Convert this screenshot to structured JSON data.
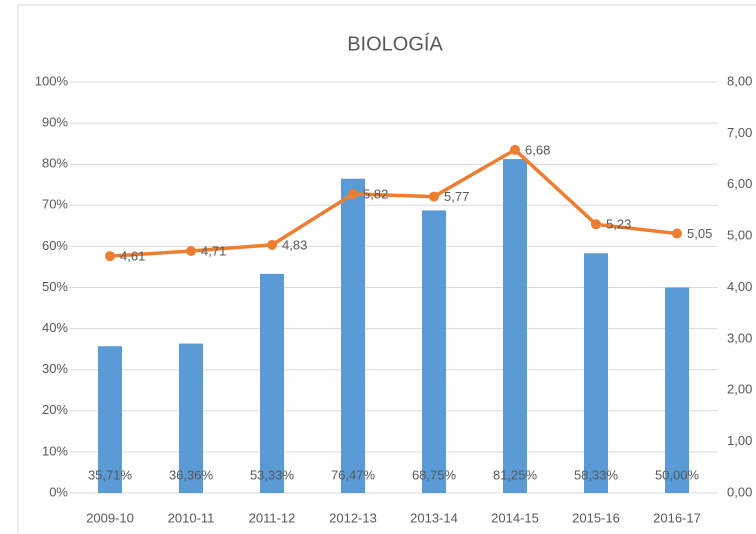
{
  "chart_data": {
    "type": "bar_line",
    "title": "BIOLOGÍA",
    "categories": [
      "2009-10",
      "2010-11",
      "2011-12",
      "2012-13",
      "2013-14",
      "2014-15",
      "2015-16",
      "2016-17"
    ],
    "series": [
      {
        "type": "bar",
        "color": "#5b9bd5",
        "values": [
          35.71,
          36.36,
          53.33,
          76.47,
          68.75,
          81.25,
          58.33,
          50.0
        ],
        "value_labels": [
          "35,71%",
          "36,36%",
          "53,33%",
          "76,47%",
          "68,75%",
          "81,25%",
          "58,33%",
          "50,00%"
        ]
      },
      {
        "type": "line",
        "axis": "y2",
        "color": "#ed7d31",
        "values": [
          4.61,
          4.71,
          4.83,
          5.82,
          5.77,
          6.68,
          5.23,
          5.05
        ],
        "value_labels": [
          "4,61",
          "4,71",
          "4,83",
          "5,82",
          "5,77",
          "6,68",
          "5,23",
          "5,05"
        ]
      }
    ],
    "ylim": [
      0,
      100
    ],
    "yticks": [
      {
        "value": 0,
        "label": "0%"
      },
      {
        "value": 10,
        "label": "10%"
      },
      {
        "value": 20,
        "label": "20%"
      },
      {
        "value": 30,
        "label": "30%"
      },
      {
        "value": 40,
        "label": "40%"
      },
      {
        "value": 50,
        "label": "50%"
      },
      {
        "value": 60,
        "label": "60%"
      },
      {
        "value": 70,
        "label": "70%"
      },
      {
        "value": 80,
        "label": "80%"
      },
      {
        "value": 90,
        "label": "90%"
      },
      {
        "value": 100,
        "label": "100%"
      }
    ],
    "y2lim": [
      0,
      8
    ],
    "y2ticks": [
      {
        "value": 0,
        "label": "0,00"
      },
      {
        "value": 1,
        "label": "1,00"
      },
      {
        "value": 2,
        "label": "2,00"
      },
      {
        "value": 3,
        "label": "3,00"
      },
      {
        "value": 4,
        "label": "4,00"
      },
      {
        "value": 5,
        "label": "5,00"
      },
      {
        "value": 6,
        "label": "6,00"
      },
      {
        "value": 7,
        "label": "7,00"
      },
      {
        "value": 8,
        "label": "8,00"
      }
    ],
    "grid": true
  }
}
